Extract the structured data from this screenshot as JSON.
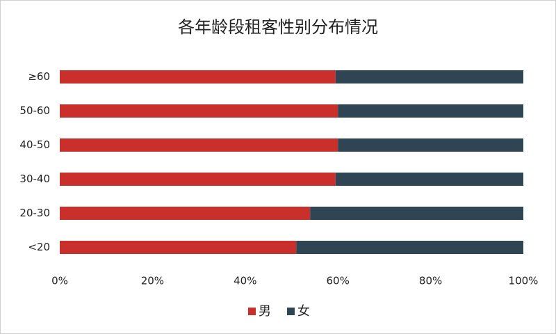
{
  "chart_data": {
    "type": "stacked_bar_horizontal",
    "title": "各年龄段租客性别分布情况",
    "categories": [
      "≥60",
      "50-60",
      "40-50",
      "30-40",
      "20-30",
      "<20"
    ],
    "series": [
      {
        "name": "男",
        "color": "#c9302c",
        "values": [
          59.5,
          60,
          60,
          59.5,
          54,
          51
        ]
      },
      {
        "name": "女",
        "color": "#2f4554",
        "values": [
          40.5,
          40,
          40,
          40.5,
          46,
          49
        ]
      }
    ],
    "xlim": [
      0,
      100
    ],
    "xticks": [
      {
        "value": 0,
        "label": "0%"
      },
      {
        "value": 20,
        "label": "20%"
      },
      {
        "value": 40,
        "label": "40%"
      },
      {
        "value": 60,
        "label": "60%"
      },
      {
        "value": 80,
        "label": "80%"
      },
      {
        "value": 100,
        "label": "100%"
      }
    ],
    "grid": false,
    "legend": "bottom"
  }
}
